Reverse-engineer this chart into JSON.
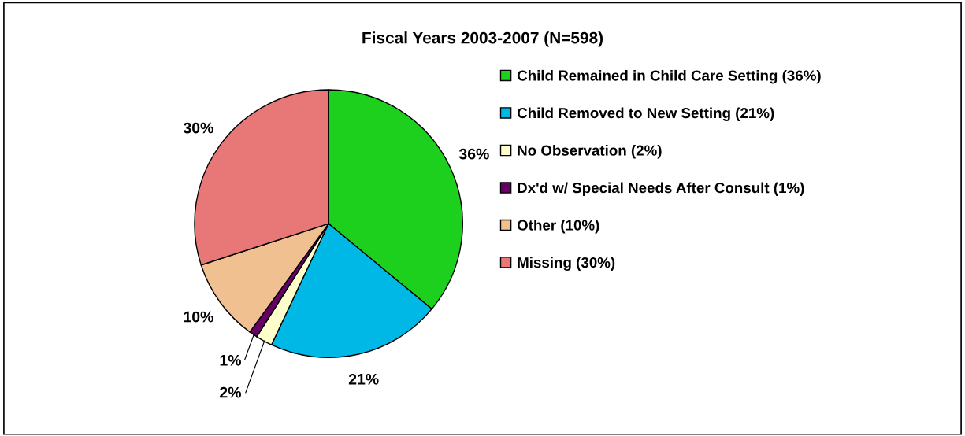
{
  "chart_data": {
    "type": "pie",
    "title": "Fiscal Years 2003-2007 (N=598)",
    "categories": [
      "Child Remained in Child Care Setting (36%)",
      "Child Removed to New Setting (21%)",
      "No Observation (2%)",
      "Dx'd w/ Special Needs After Consult (1%)",
      "Other (10%)",
      "Missing (30%)"
    ],
    "values": [
      36,
      21,
      2,
      1,
      10,
      30
    ],
    "colors": [
      "#1ed01e",
      "#00b8e6",
      "#ffffcc",
      "#660066",
      "#f0c090",
      "#e87878"
    ],
    "value_labels": [
      "36%",
      "21%",
      "2%",
      "1%",
      "10%",
      "30%"
    ],
    "legend": "right"
  }
}
